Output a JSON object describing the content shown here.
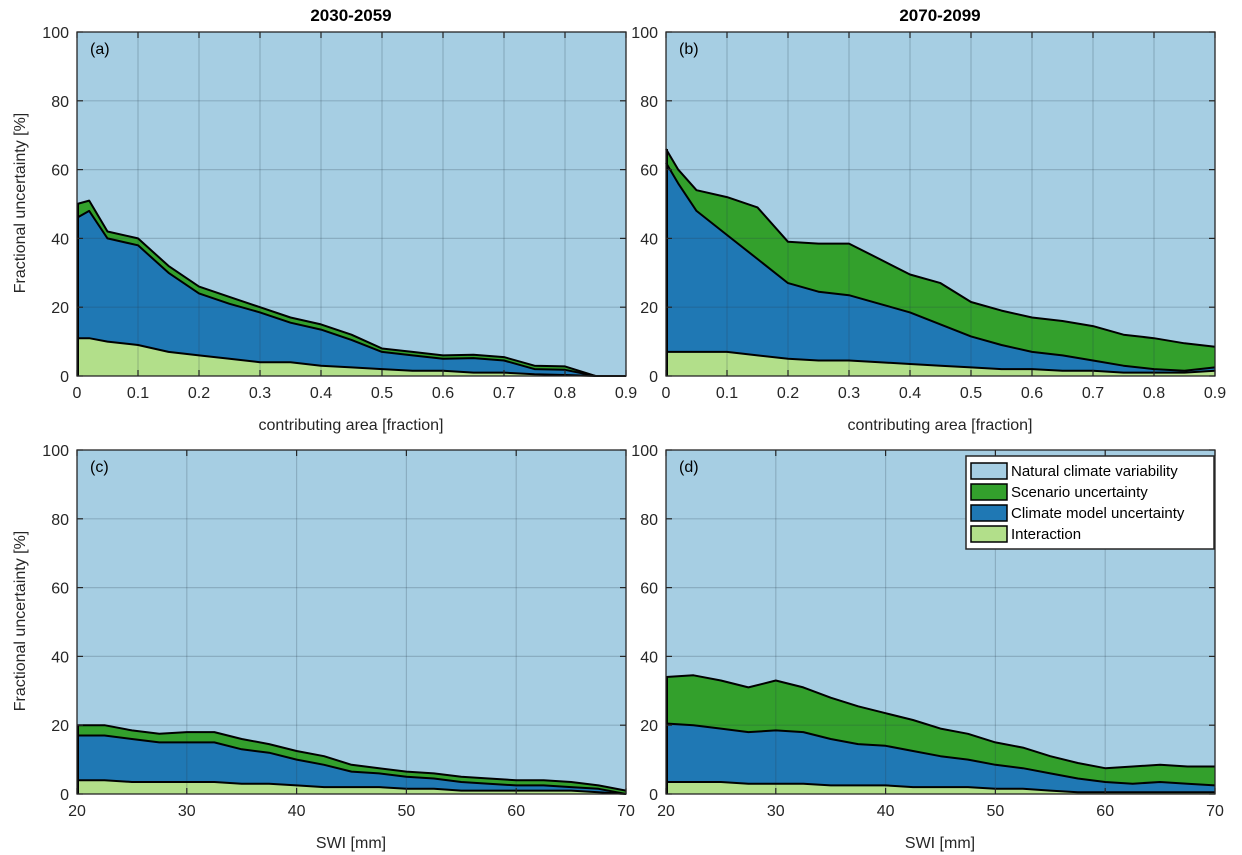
{
  "colors": {
    "natural": "#a6cee3",
    "scenario": "#33a02c",
    "model": "#1f78b4",
    "interaction": "#b2df8a",
    "grid": "#2b3a4a",
    "border": "#262626"
  },
  "legend": {
    "items": [
      {
        "label": "Natural climate variability",
        "color_key": "natural"
      },
      {
        "label": "Scenario uncertainty",
        "color_key": "scenario"
      },
      {
        "label": "Climate model uncertainty",
        "color_key": "model"
      },
      {
        "label": "Interaction",
        "color_key": "interaction"
      }
    ]
  },
  "chart_data": [
    {
      "type": "area",
      "panel_label": "(a)",
      "title": "2030-2059",
      "xlabel": "contributing area [fraction]",
      "ylabel": "Fractional uncertainty [%]",
      "xlim": [
        0,
        0.9
      ],
      "ylim": [
        0,
        100
      ],
      "xticks": [
        0,
        0.1,
        0.2,
        0.3,
        0.4,
        0.5,
        0.6,
        0.7,
        0.8,
        0.9
      ],
      "yticks": [
        0,
        20,
        40,
        60,
        80,
        100
      ],
      "x": [
        0,
        0.02,
        0.05,
        0.1,
        0.15,
        0.2,
        0.25,
        0.3,
        0.35,
        0.4,
        0.45,
        0.5,
        0.55,
        0.6,
        0.65,
        0.7,
        0.75,
        0.8,
        0.85,
        0.9
      ],
      "series": [
        {
          "name": "Interaction",
          "values": [
            11,
            11,
            10,
            9,
            7,
            6,
            5,
            4,
            4,
            3,
            2.5,
            2,
            1.5,
            1.5,
            1,
            1,
            0.5,
            0.3,
            0,
            0
          ]
        },
        {
          "name": "Climate model uncertainty",
          "values": [
            35,
            37,
            30,
            29,
            23,
            18,
            16,
            14.5,
            11.5,
            10.5,
            8,
            5,
            4.5,
            3.5,
            4.2,
            3.5,
            1.5,
            1.5,
            0,
            0
          ]
        },
        {
          "name": "Scenario uncertainty",
          "values": [
            4,
            3,
            2,
            2,
            2,
            2,
            2,
            1.5,
            1.5,
            1.5,
            1.5,
            1,
            1,
            1,
            1,
            1,
            1,
            1,
            0,
            0
          ]
        }
      ]
    },
    {
      "type": "area",
      "panel_label": "(b)",
      "title": "2070-2099",
      "xlabel": "contributing area [fraction]",
      "ylabel": "",
      "xlim": [
        0,
        0.9
      ],
      "ylim": [
        0,
        100
      ],
      "xticks": [
        0,
        0.1,
        0.2,
        0.3,
        0.4,
        0.5,
        0.6,
        0.7,
        0.8,
        0.9
      ],
      "yticks": [
        0,
        20,
        40,
        60,
        80,
        100
      ],
      "x": [
        0,
        0.02,
        0.05,
        0.1,
        0.15,
        0.2,
        0.25,
        0.3,
        0.35,
        0.4,
        0.45,
        0.5,
        0.55,
        0.6,
        0.65,
        0.7,
        0.75,
        0.8,
        0.85,
        0.9
      ],
      "series": [
        {
          "name": "Interaction",
          "values": [
            7,
            7,
            7,
            7,
            6,
            5,
            4.5,
            4.5,
            4,
            3.5,
            3,
            2.5,
            2,
            2,
            1.5,
            1.5,
            1,
            1,
            1,
            1.5
          ]
        },
        {
          "name": "Climate model uncertainty",
          "values": [
            55,
            49,
            41,
            34,
            28,
            22,
            20,
            19,
            17,
            15,
            12,
            9,
            7,
            5,
            4.5,
            3,
            2,
            1,
            0.5,
            1
          ]
        },
        {
          "name": "Scenario uncertainty",
          "values": [
            4,
            4,
            6,
            11,
            15,
            12,
            14,
            15,
            13,
            11,
            12,
            10,
            10,
            10,
            10,
            10,
            9,
            9,
            8,
            6
          ]
        }
      ]
    },
    {
      "type": "area",
      "panel_label": "(c)",
      "title": "",
      "xlabel": "SWI [mm]",
      "ylabel": "Fractional uncertainty [%]",
      "xlim": [
        20,
        70
      ],
      "ylim": [
        0,
        100
      ],
      "xticks": [
        20,
        30,
        40,
        50,
        60,
        70
      ],
      "yticks": [
        0,
        20,
        40,
        60,
        80,
        100
      ],
      "x": [
        20,
        22.5,
        25,
        27.5,
        30,
        32.5,
        35,
        37.5,
        40,
        42.5,
        45,
        47.5,
        50,
        52.5,
        55,
        57.5,
        60,
        62.5,
        65,
        67.5,
        70
      ],
      "series": [
        {
          "name": "Interaction",
          "values": [
            4,
            4,
            3.5,
            3.5,
            3.5,
            3.5,
            3,
            3,
            2.5,
            2,
            2,
            2,
            1.5,
            1.5,
            1,
            1,
            1,
            1,
            1,
            0.5,
            0
          ]
        },
        {
          "name": "Climate model uncertainty",
          "values": [
            13,
            13,
            12.5,
            11.5,
            11.5,
            11.5,
            10,
            9,
            7.5,
            6.5,
            4.5,
            4,
            3.5,
            3,
            2.5,
            2,
            1.5,
            1.5,
            1,
            1,
            0
          ]
        },
        {
          "name": "Scenario uncertainty",
          "values": [
            3,
            3,
            2.5,
            2.5,
            3,
            3,
            3,
            2.5,
            2.5,
            2.5,
            2,
            1.5,
            1.5,
            1.5,
            1.5,
            1.5,
            1.5,
            1.5,
            1.5,
            1,
            1
          ]
        }
      ]
    },
    {
      "type": "area",
      "panel_label": "(d)",
      "title": "",
      "xlabel": "SWI [mm]",
      "ylabel": "",
      "xlim": [
        20,
        70
      ],
      "ylim": [
        0,
        100
      ],
      "xticks": [
        20,
        30,
        40,
        50,
        60,
        70
      ],
      "yticks": [
        0,
        20,
        40,
        60,
        80,
        100
      ],
      "x": [
        20,
        22.5,
        25,
        27.5,
        30,
        32.5,
        35,
        37.5,
        40,
        42.5,
        45,
        47.5,
        50,
        52.5,
        55,
        57.5,
        60,
        62.5,
        65,
        67.5,
        70
      ],
      "series": [
        {
          "name": "Interaction",
          "values": [
            3.5,
            3.5,
            3.5,
            3,
            3,
            3,
            2.5,
            2.5,
            2.5,
            2,
            2,
            2,
            1.5,
            1.5,
            1,
            0.5,
            0.5,
            0.5,
            0.5,
            0.5,
            0.5
          ]
        },
        {
          "name": "Climate model uncertainty",
          "values": [
            17,
            16.5,
            15.5,
            15,
            15.5,
            15,
            13.5,
            12,
            11.5,
            10.5,
            9,
            8,
            7,
            6,
            5,
            4,
            3,
            2.5,
            3,
            2.5,
            2
          ]
        },
        {
          "name": "Scenario uncertainty",
          "values": [
            13.5,
            14.5,
            14,
            13,
            14.5,
            13,
            12,
            11,
            9.5,
            9,
            8,
            7.5,
            6.5,
            6,
            5,
            4.5,
            4,
            5,
            5,
            5,
            5.5
          ]
        }
      ]
    }
  ]
}
